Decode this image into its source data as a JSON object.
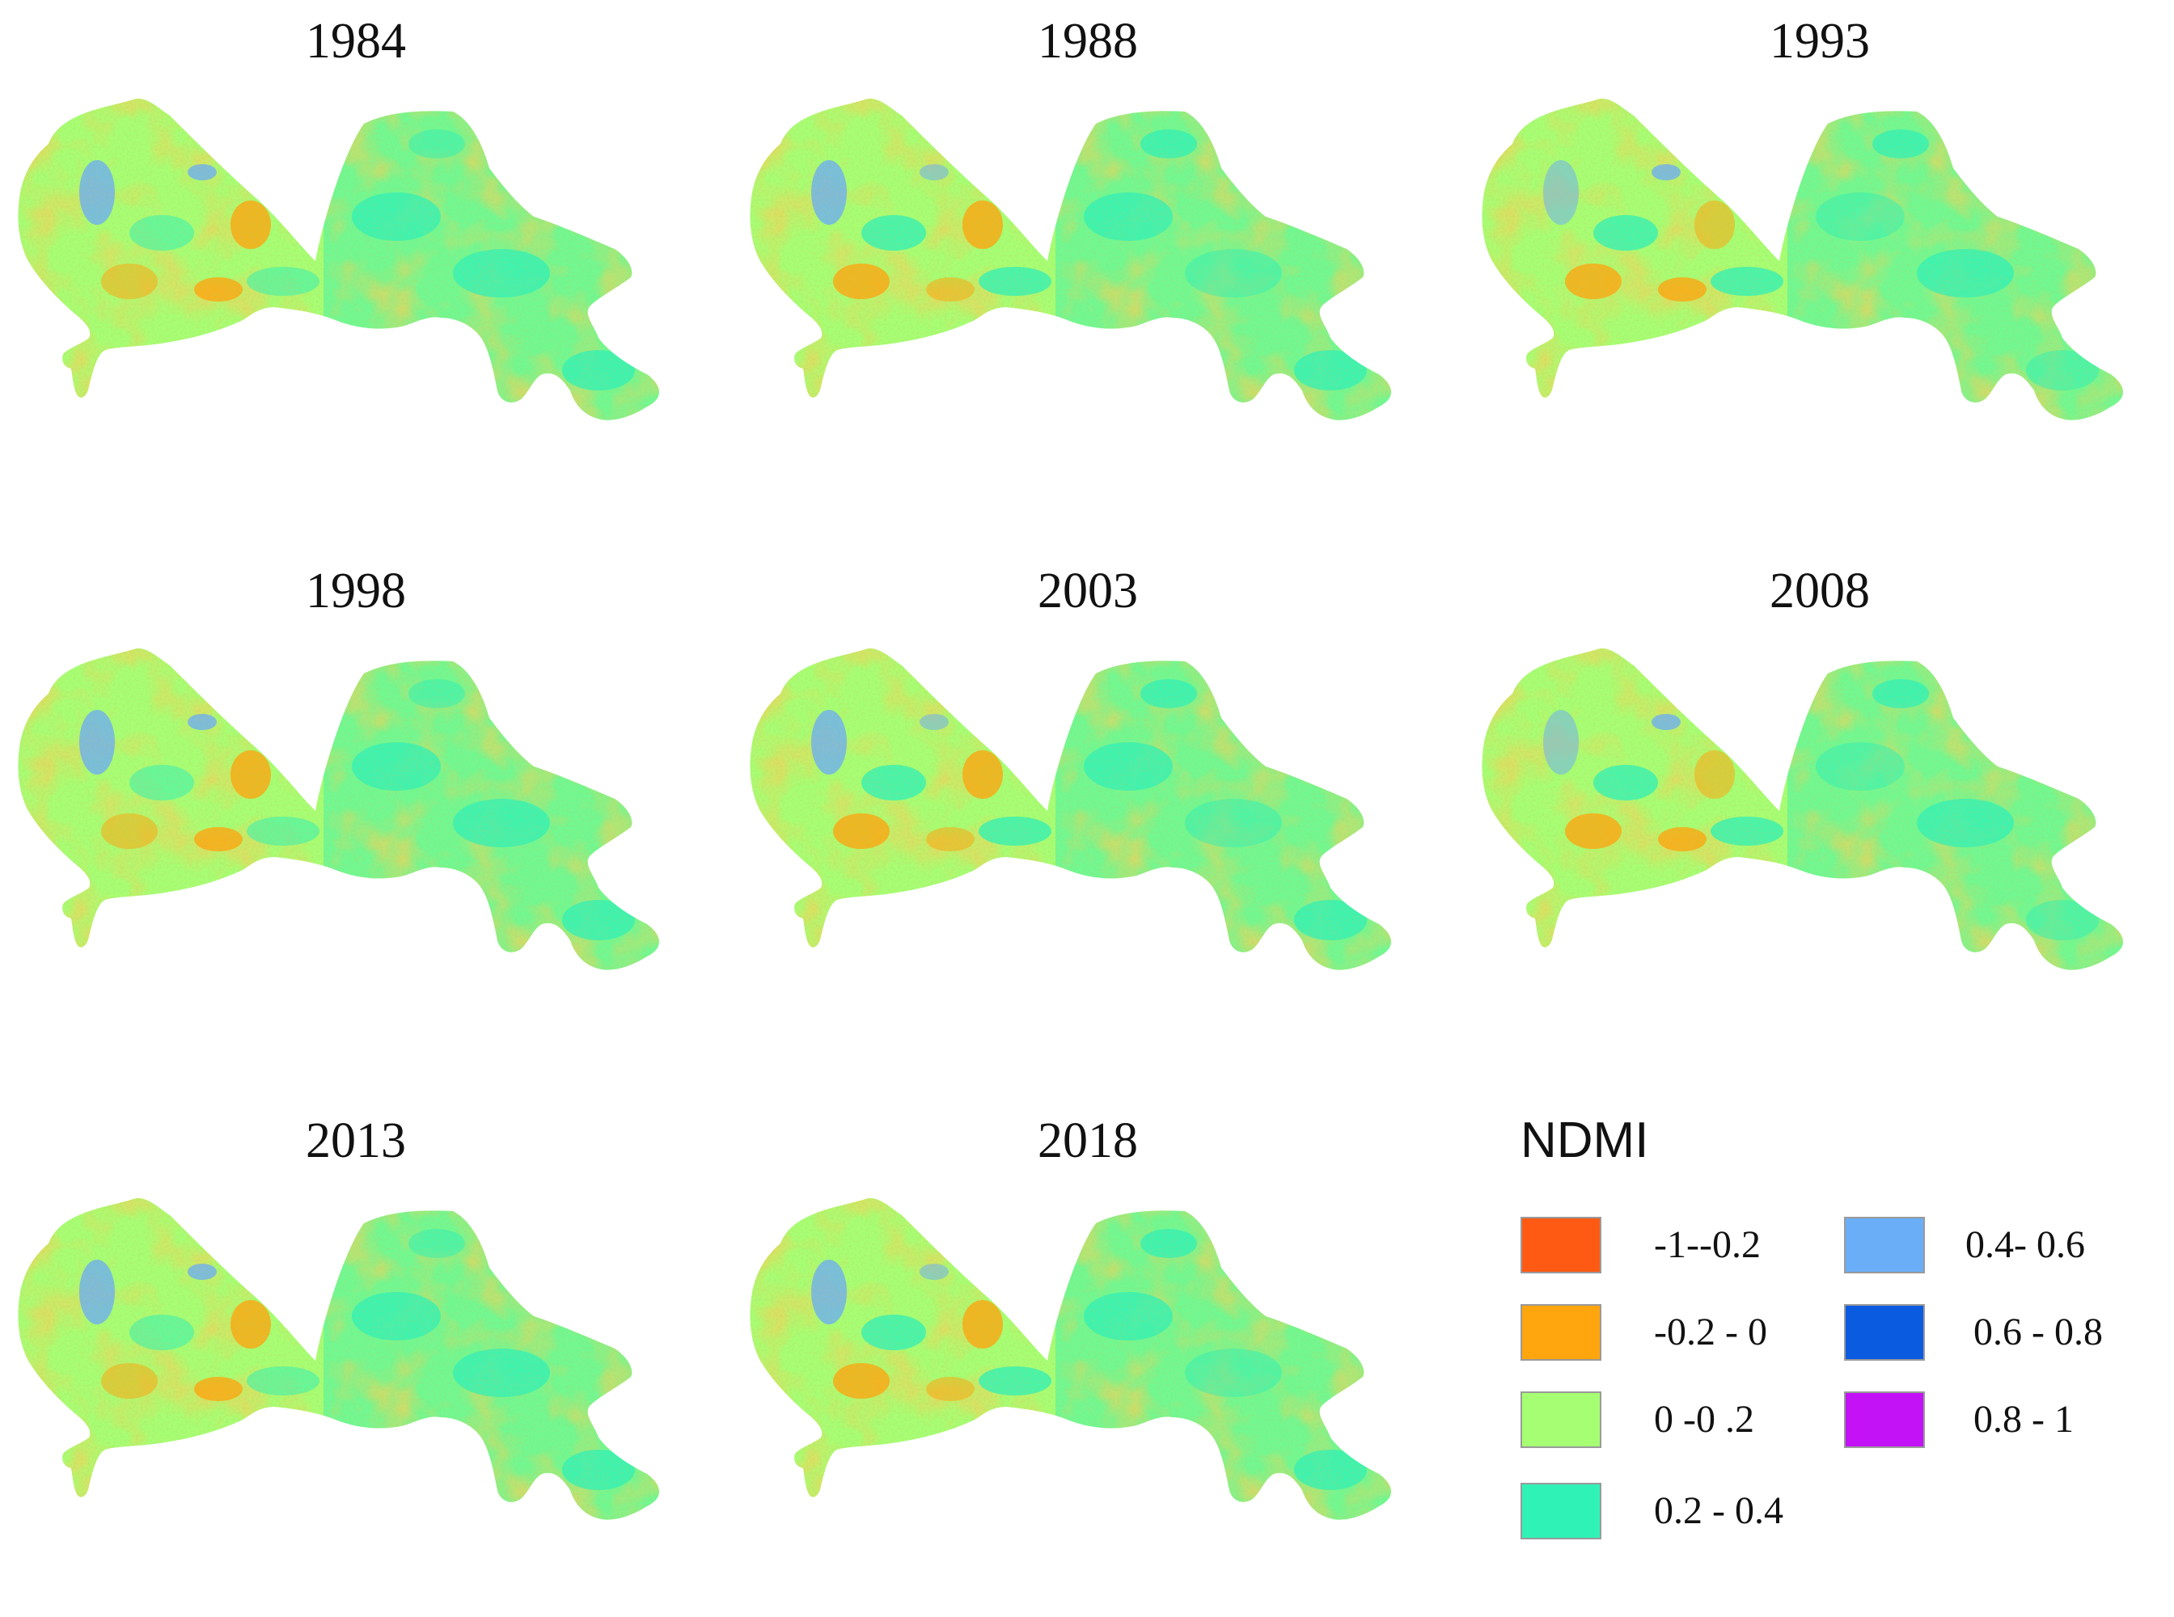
{
  "maps": [
    {
      "year": "1984"
    },
    {
      "year": "1988"
    },
    {
      "year": "1993"
    },
    {
      "year": "1998"
    },
    {
      "year": "2003"
    },
    {
      "year": "2008"
    },
    {
      "year": "2013"
    },
    {
      "year": "2018"
    }
  ],
  "legend": {
    "title": "NDMI",
    "classes": [
      {
        "label": "-1--0.2",
        "color": "#ff5a14"
      },
      {
        "label": "-0.2 - 0",
        "color": "#ffa50d"
      },
      {
        "label": "0 -0 .2",
        "color": "#a6ff73"
      },
      {
        "label": "0.2 - 0.4",
        "color": "#2ff2b6"
      },
      {
        "label": "0.4- 0.6",
        "color": "#6aaef7"
      },
      {
        "label": "0.6 - 0.8",
        "color": "#0a5be0"
      },
      {
        "label": "0.8 - 1",
        "color": "#c212f5"
      }
    ]
  }
}
